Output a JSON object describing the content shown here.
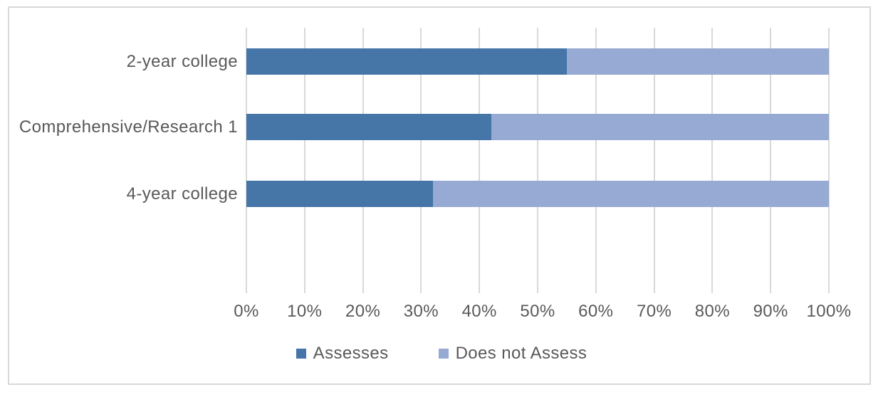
{
  "chart_data": {
    "type": "bar",
    "orientation": "horizontal",
    "stacked": true,
    "title": "",
    "categories": [
      "2-year college",
      "Comprehensive/Research 1",
      "4-year college"
    ],
    "series": [
      {
        "name": "Assesses",
        "color": "#4675A8",
        "values": [
          55,
          42,
          32
        ]
      },
      {
        "name": "Does not Assess",
        "color": "#96AAD3",
        "values": [
          45,
          58,
          68
        ]
      }
    ],
    "x_axis": {
      "min": 0,
      "max": 100,
      "tick_step": 10,
      "tick_labels": [
        "0%",
        "10%",
        "20%",
        "30%",
        "40%",
        "50%",
        "60%",
        "70%",
        "80%",
        "90%",
        "100%"
      ]
    },
    "legend": {
      "position": "bottom",
      "entries": [
        "Assesses",
        "Does not Assess"
      ]
    },
    "grid": {
      "vertical": true,
      "color": "#D9D9D9"
    },
    "colors": {
      "text": "#595959",
      "frame_border": "#D8D8D8",
      "background": "#FFFFFF"
    }
  }
}
